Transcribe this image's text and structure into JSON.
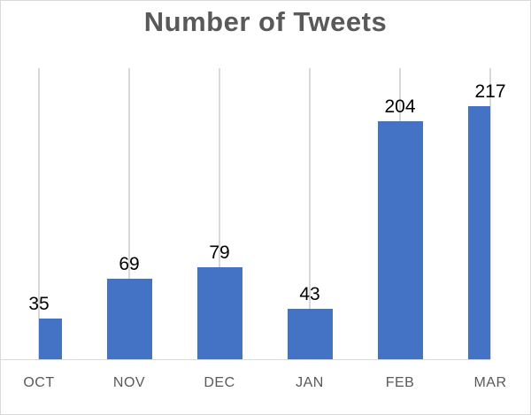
{
  "chart_data": {
    "type": "bar",
    "title": "Number of Tweets",
    "categories": [
      "OCT",
      "NOV",
      "DEC",
      "JAN",
      "FEB",
      "MAR"
    ],
    "values": [
      35,
      69,
      79,
      43,
      204,
      217
    ],
    "data_labels": [
      "35",
      "69",
      "79",
      "43",
      "204",
      "217"
    ],
    "xlabel": "",
    "ylabel": "",
    "ylim": [
      0,
      250
    ],
    "grid": "vertical-only",
    "legend_position": "none",
    "colors": {
      "bar_fill": "#4472C4",
      "gridline": "#D9D9D9",
      "axis_line": "#D9D9D9",
      "border": "#D9D9D9",
      "title_text": "#595959",
      "axis_label_text": "#595959",
      "data_label_text": "#000000",
      "background": "#FFFFFF"
    }
  }
}
